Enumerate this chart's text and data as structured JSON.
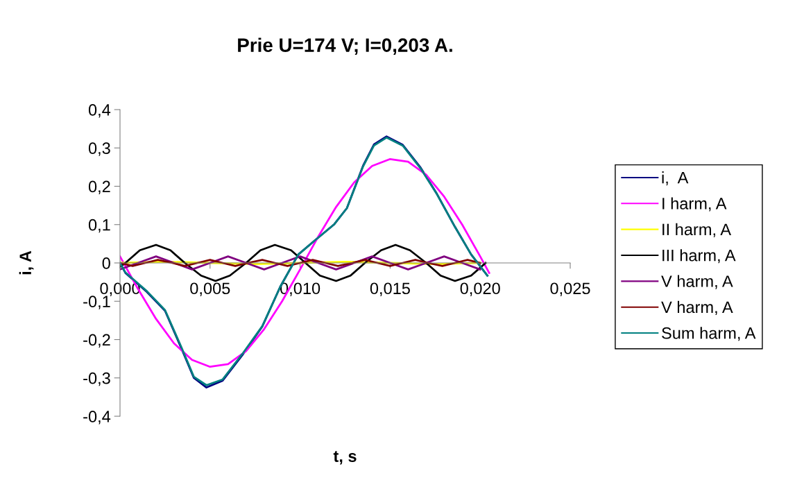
{
  "chart_data": {
    "type": "line",
    "title": "Prie U=174 V; I=0,203 A.",
    "xlabel": "t, s",
    "ylabel": "i, A",
    "xlim": [
      0,
      0.025
    ],
    "ylim": [
      -0.4,
      0.4
    ],
    "xticks": [
      {
        "value": 0,
        "label": "0,000"
      },
      {
        "value": 0.005,
        "label": "0,005"
      },
      {
        "value": 0.01,
        "label": "0,010"
      },
      {
        "value": 0.015,
        "label": "0,015"
      },
      {
        "value": 0.02,
        "label": "0,020"
      },
      {
        "value": 0.025,
        "label": "0,025"
      }
    ],
    "yticks": [
      {
        "value": -0.4,
        "label": "-0,4"
      },
      {
        "value": -0.3,
        "label": "-0,3"
      },
      {
        "value": -0.2,
        "label": "-0,2"
      },
      {
        "value": -0.1,
        "label": "-0,1"
      },
      {
        "value": 0,
        "label": "0"
      },
      {
        "value": 0.1,
        "label": "0,1"
      },
      {
        "value": 0.2,
        "label": "0,2"
      },
      {
        "value": 0.3,
        "label": "0,3"
      },
      {
        "value": 0.4,
        "label": "0,4"
      }
    ],
    "grid": false,
    "legend": "right",
    "marker": "none",
    "line_style": "solid",
    "series": [
      {
        "name": "i,  A",
        "color": "#000080",
        "x": [
          0,
          0.0003,
          0.0015,
          0.0025,
          0.0034,
          0.0041,
          0.0048,
          0.0057,
          0.0068,
          0.0079,
          0.0089,
          0.0099,
          0.0108,
          0.0119,
          0.0126,
          0.0135,
          0.0141,
          0.0148,
          0.0157,
          0.0167,
          0.0176,
          0.0186,
          0.0195,
          0.0204
        ],
        "values": [
          0,
          -0.026,
          -0.076,
          -0.125,
          -0.222,
          -0.3,
          -0.325,
          -0.307,
          -0.24,
          -0.166,
          -0.062,
          0.022,
          0.058,
          0.101,
          0.143,
          0.254,
          0.309,
          0.33,
          0.308,
          0.248,
          0.18,
          0.094,
          0.022,
          -0.033
        ]
      },
      {
        "name": "I harm, A",
        "color": "#ff00ff",
        "x": [
          0,
          0.001,
          0.002,
          0.003,
          0.004,
          0.005,
          0.006,
          0.007,
          0.008,
          0.009,
          0.01,
          0.011,
          0.012,
          0.013,
          0.014,
          0.015,
          0.016,
          0.017,
          0.018,
          0.019,
          0.02,
          0.0205
        ],
        "values": [
          0.017,
          -0.068,
          -0.146,
          -0.21,
          -0.253,
          -0.271,
          -0.264,
          -0.23,
          -0.173,
          -0.1,
          -0.017,
          0.068,
          0.146,
          0.21,
          0.253,
          0.271,
          0.264,
          0.23,
          0.173,
          0.1,
          0.017,
          -0.026
        ]
      },
      {
        "name": "II harm, A",
        "color": "#ffff00",
        "x": [
          0,
          0.0025,
          0.005,
          0.0075,
          0.01,
          0.0125,
          0.015,
          0.0175,
          0.02
        ],
        "values": [
          0,
          0.003,
          0,
          -0.003,
          0,
          0.003,
          0,
          -0.003,
          0
        ]
      },
      {
        "name": "III harm, A",
        "color": "#000000",
        "x": [
          0,
          0.0003,
          0.0011,
          0.002,
          0.0028,
          0.0036,
          0.0045,
          0.0053,
          0.0061,
          0.007,
          0.0078,
          0.0086,
          0.0095,
          0.0103,
          0.0111,
          0.012,
          0.0128,
          0.0136,
          0.0145,
          0.0153,
          0.0161,
          0.017,
          0.0178,
          0.0186,
          0.0195,
          0.0203
        ],
        "values": [
          -0.01,
          0,
          0.033,
          0.047,
          0.033,
          0,
          -0.033,
          -0.047,
          -0.033,
          0,
          0.033,
          0.047,
          0.033,
          0,
          -0.033,
          -0.047,
          -0.033,
          0,
          0.033,
          0.047,
          0.033,
          0,
          -0.033,
          -0.047,
          -0.033,
          0
        ]
      },
      {
        "name": "V harm, A",
        "color": "#800080",
        "x": [
          0,
          0.001,
          0.002,
          0.003,
          0.004,
          0.005,
          0.006,
          0.007,
          0.008,
          0.009,
          0.01,
          0.011,
          0.012,
          0.013,
          0.014,
          0.015,
          0.016,
          0.017,
          0.018,
          0.019,
          0.02
        ],
        "values": [
          -0.017,
          0,
          0.017,
          0,
          -0.017,
          0,
          0.017,
          0,
          -0.017,
          0,
          0.017,
          0,
          -0.017,
          0,
          0.017,
          0,
          -0.017,
          0,
          0.017,
          0,
          -0.017
        ]
      },
      {
        "name": "V harm, A",
        "color": "#800000",
        "x": [
          0,
          0.0007,
          0.0014,
          0.0021,
          0.0029,
          0.0036,
          0.0043,
          0.005,
          0.0057,
          0.0064,
          0.0071,
          0.0079,
          0.0086,
          0.0093,
          0.01,
          0.0107,
          0.0114,
          0.0121,
          0.0129,
          0.0136,
          0.0143,
          0.015,
          0.0157,
          0.0164,
          0.0171,
          0.0179,
          0.0186,
          0.0193,
          0.02
        ],
        "values": [
          0,
          -0.008,
          0,
          0.008,
          0,
          -0.008,
          0,
          0.008,
          0,
          -0.008,
          0,
          0.008,
          0,
          -0.008,
          0,
          0.008,
          0,
          -0.008,
          0,
          0.008,
          0,
          -0.008,
          0,
          0.008,
          0,
          -0.008,
          0,
          0.008,
          0
        ]
      },
      {
        "name": "Sum harm, A",
        "color": "#008080",
        "x": [
          0,
          0.0003,
          0.0015,
          0.0025,
          0.0034,
          0.0041,
          0.0048,
          0.0057,
          0.0068,
          0.0079,
          0.0089,
          0.0099,
          0.0108,
          0.0119,
          0.0126,
          0.0135,
          0.0141,
          0.0148,
          0.0157,
          0.0167,
          0.0176,
          0.0186,
          0.0195,
          0.0204
        ],
        "values": [
          0,
          -0.025,
          -0.074,
          -0.123,
          -0.219,
          -0.297,
          -0.319,
          -0.304,
          -0.237,
          -0.165,
          -0.062,
          0.022,
          0.058,
          0.101,
          0.143,
          0.252,
          0.306,
          0.327,
          0.306,
          0.246,
          0.179,
          0.094,
          0.022,
          -0.033
        ]
      }
    ]
  }
}
